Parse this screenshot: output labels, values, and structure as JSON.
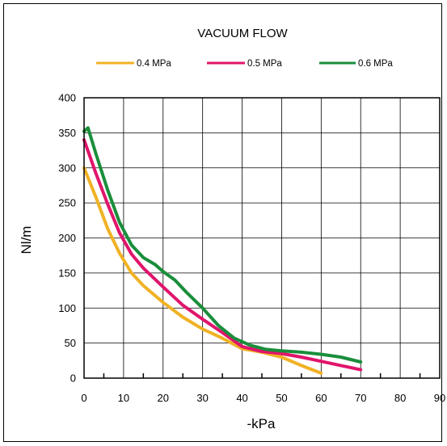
{
  "chart_data": {
    "type": "line",
    "title": "VACUUM FLOW",
    "xlabel": "-kPa",
    "ylabel": "Nl/m",
    "xlim": [
      0,
      90
    ],
    "ylim": [
      0,
      400
    ],
    "xticks": [
      "0",
      "10",
      "20",
      "30",
      "40",
      "50",
      "60",
      "70",
      "80",
      "90"
    ],
    "yticks": [
      "0",
      "50",
      "100",
      "150",
      "200",
      "250",
      "300",
      "350",
      "400"
    ],
    "grid": true,
    "legend_position": "top",
    "series": [
      {
        "name": "0.4 MPa",
        "color": "#f0b225",
        "x": [
          0,
          3,
          6,
          9,
          12,
          15,
          20,
          25,
          30,
          35,
          40,
          45,
          50,
          55,
          60
        ],
        "y": [
          300,
          258,
          213,
          178,
          150,
          132,
          108,
          87,
          70,
          57,
          42,
          37,
          30,
          18,
          7
        ]
      },
      {
        "name": "0.5 MPa",
        "color": "#e0156b",
        "x": [
          0,
          3,
          6,
          9,
          12,
          15,
          20,
          25,
          30,
          35,
          40,
          45,
          50,
          55,
          60,
          65,
          70
        ],
        "y": [
          340,
          292,
          248,
          207,
          177,
          157,
          130,
          104,
          84,
          65,
          45,
          38,
          35,
          30,
          24,
          18,
          12
        ]
      },
      {
        "name": "0.6 MPa",
        "color": "#1a8e3b",
        "x": [
          0,
          1,
          3,
          6,
          9,
          12,
          15,
          18,
          20,
          23,
          26,
          30,
          34,
          38,
          42,
          46,
          50,
          55,
          60,
          65,
          70
        ],
        "y": [
          352,
          357,
          320,
          268,
          222,
          190,
          172,
          162,
          152,
          140,
          122,
          100,
          75,
          57,
          47,
          41,
          39,
          37,
          34,
          30,
          23
        ]
      }
    ]
  }
}
